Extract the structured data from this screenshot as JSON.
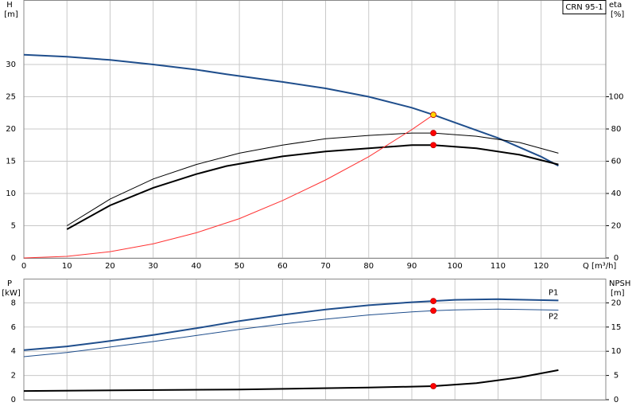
{
  "chart_data": [
    {
      "type": "line",
      "title": "CRN 95-1",
      "ylabel": "H",
      "ylabel_unit": "[m]",
      "y2label": "eta",
      "y2label_unit": "[%]",
      "xlabel": "Q [m³/h]",
      "xlim": [
        0,
        135
      ],
      "xticks": [
        0,
        10,
        20,
        30,
        40,
        50,
        60,
        70,
        80,
        90,
        100,
        110,
        120
      ],
      "xtick_labels": true,
      "ylim": [
        0,
        40
      ],
      "yticks": [
        0,
        5,
        10,
        15,
        20,
        25,
        30
      ],
      "y2lim": [
        0,
        160
      ],
      "y2ticks": [
        0,
        20,
        40,
        60,
        80,
        100
      ],
      "grid": true,
      "series": [
        {
          "color": "#1f4e8c",
          "width": 2,
          "x": [
            0,
            10,
            20,
            30,
            40,
            47,
            60,
            70,
            80,
            90,
            95,
            100,
            110,
            120,
            124
          ],
          "values": [
            31.5,
            31.2,
            30.7,
            30.0,
            29.2,
            28.5,
            27.3,
            26.3,
            25.0,
            23.3,
            22.2,
            21.0,
            18.6,
            15.7,
            14.3
          ]
        },
        {
          "color": "#000000",
          "width": 1,
          "axis": "y2",
          "x": [
            10,
            20,
            30,
            40,
            50,
            60,
            70,
            80,
            90,
            95,
            105,
            115,
            124
          ],
          "values": [
            20,
            36.5,
            49,
            58,
            65,
            70,
            74,
            76,
            77.5,
            77.5,
            75.5,
            71.6,
            65
          ]
        },
        {
          "color": "#000000",
          "width": 2,
          "axis": "y2",
          "x": [
            10,
            20,
            30,
            40,
            47,
            60,
            70,
            80,
            90,
            95,
            105,
            115,
            124
          ],
          "values": [
            17.8,
            32.6,
            43.5,
            52,
            57,
            63,
            66,
            68,
            70,
            70,
            68,
            64,
            58
          ]
        },
        {
          "color": "#ff3333",
          "width": 1,
          "x": [
            0,
            10,
            20,
            30,
            40,
            50,
            60,
            70,
            80,
            90,
            95
          ],
          "values": [
            0,
            0.25,
            0.98,
            2.2,
            3.9,
            6.1,
            8.9,
            12.1,
            15.7,
            19.9,
            22.2
          ]
        },
        {
          "color": "#ffd700",
          "marker": true,
          "x": [
            95
          ],
          "values": [
            22.2
          ]
        },
        {
          "color": "#ff0000",
          "marker": true,
          "axis": "y2",
          "x": [
            95,
            95
          ],
          "values": [
            77.5,
            70
          ]
        }
      ]
    },
    {
      "type": "line",
      "ylabel": "P",
      "ylabel_unit": "[kW]",
      "y2label": "NPSH",
      "y2label_unit": "[m]",
      "xlim": [
        0,
        135
      ],
      "xticks": [
        0,
        10,
        20,
        30,
        40,
        50,
        60,
        70,
        80,
        90,
        100,
        110,
        120
      ],
      "xtick_labels": false,
      "ylim": [
        0,
        10
      ],
      "yticks": [
        0,
        2,
        4,
        6,
        8
      ],
      "y2lim": [
        0,
        25
      ],
      "y2ticks": [
        0,
        5,
        10,
        15,
        20
      ],
      "grid": true,
      "series": [
        {
          "name": "P1",
          "color": "#1f4e8c",
          "width": 2,
          "x": [
            0,
            10,
            20,
            30,
            40,
            50,
            60,
            70,
            80,
            90,
            95,
            100,
            110,
            124
          ],
          "values": [
            4.1,
            4.4,
            4.85,
            5.35,
            5.9,
            6.5,
            7.0,
            7.45,
            7.8,
            8.05,
            8.15,
            8.25,
            8.3,
            8.2
          ]
        },
        {
          "name": "P2",
          "color": "#1f4e8c",
          "width": 1,
          "x": [
            0,
            10,
            20,
            30,
            40,
            50,
            60,
            70,
            80,
            90,
            95,
            100,
            110,
            124
          ],
          "values": [
            3.55,
            3.9,
            4.35,
            4.8,
            5.3,
            5.8,
            6.25,
            6.65,
            7.0,
            7.25,
            7.35,
            7.42,
            7.48,
            7.4
          ]
        },
        {
          "color": "#000000",
          "width": 2,
          "axis": "y2",
          "x": [
            0,
            50,
            80,
            95,
            105,
            115,
            124
          ],
          "values": [
            1.8,
            2.1,
            2.5,
            2.8,
            3.4,
            4.6,
            6.1
          ]
        },
        {
          "color": "#ff0000",
          "marker": true,
          "x": [
            95,
            95
          ],
          "values": [
            8.15,
            7.35
          ]
        },
        {
          "color": "#ff0000",
          "marker": true,
          "axis": "y2",
          "x": [
            95
          ],
          "values": [
            2.8
          ]
        }
      ]
    }
  ]
}
